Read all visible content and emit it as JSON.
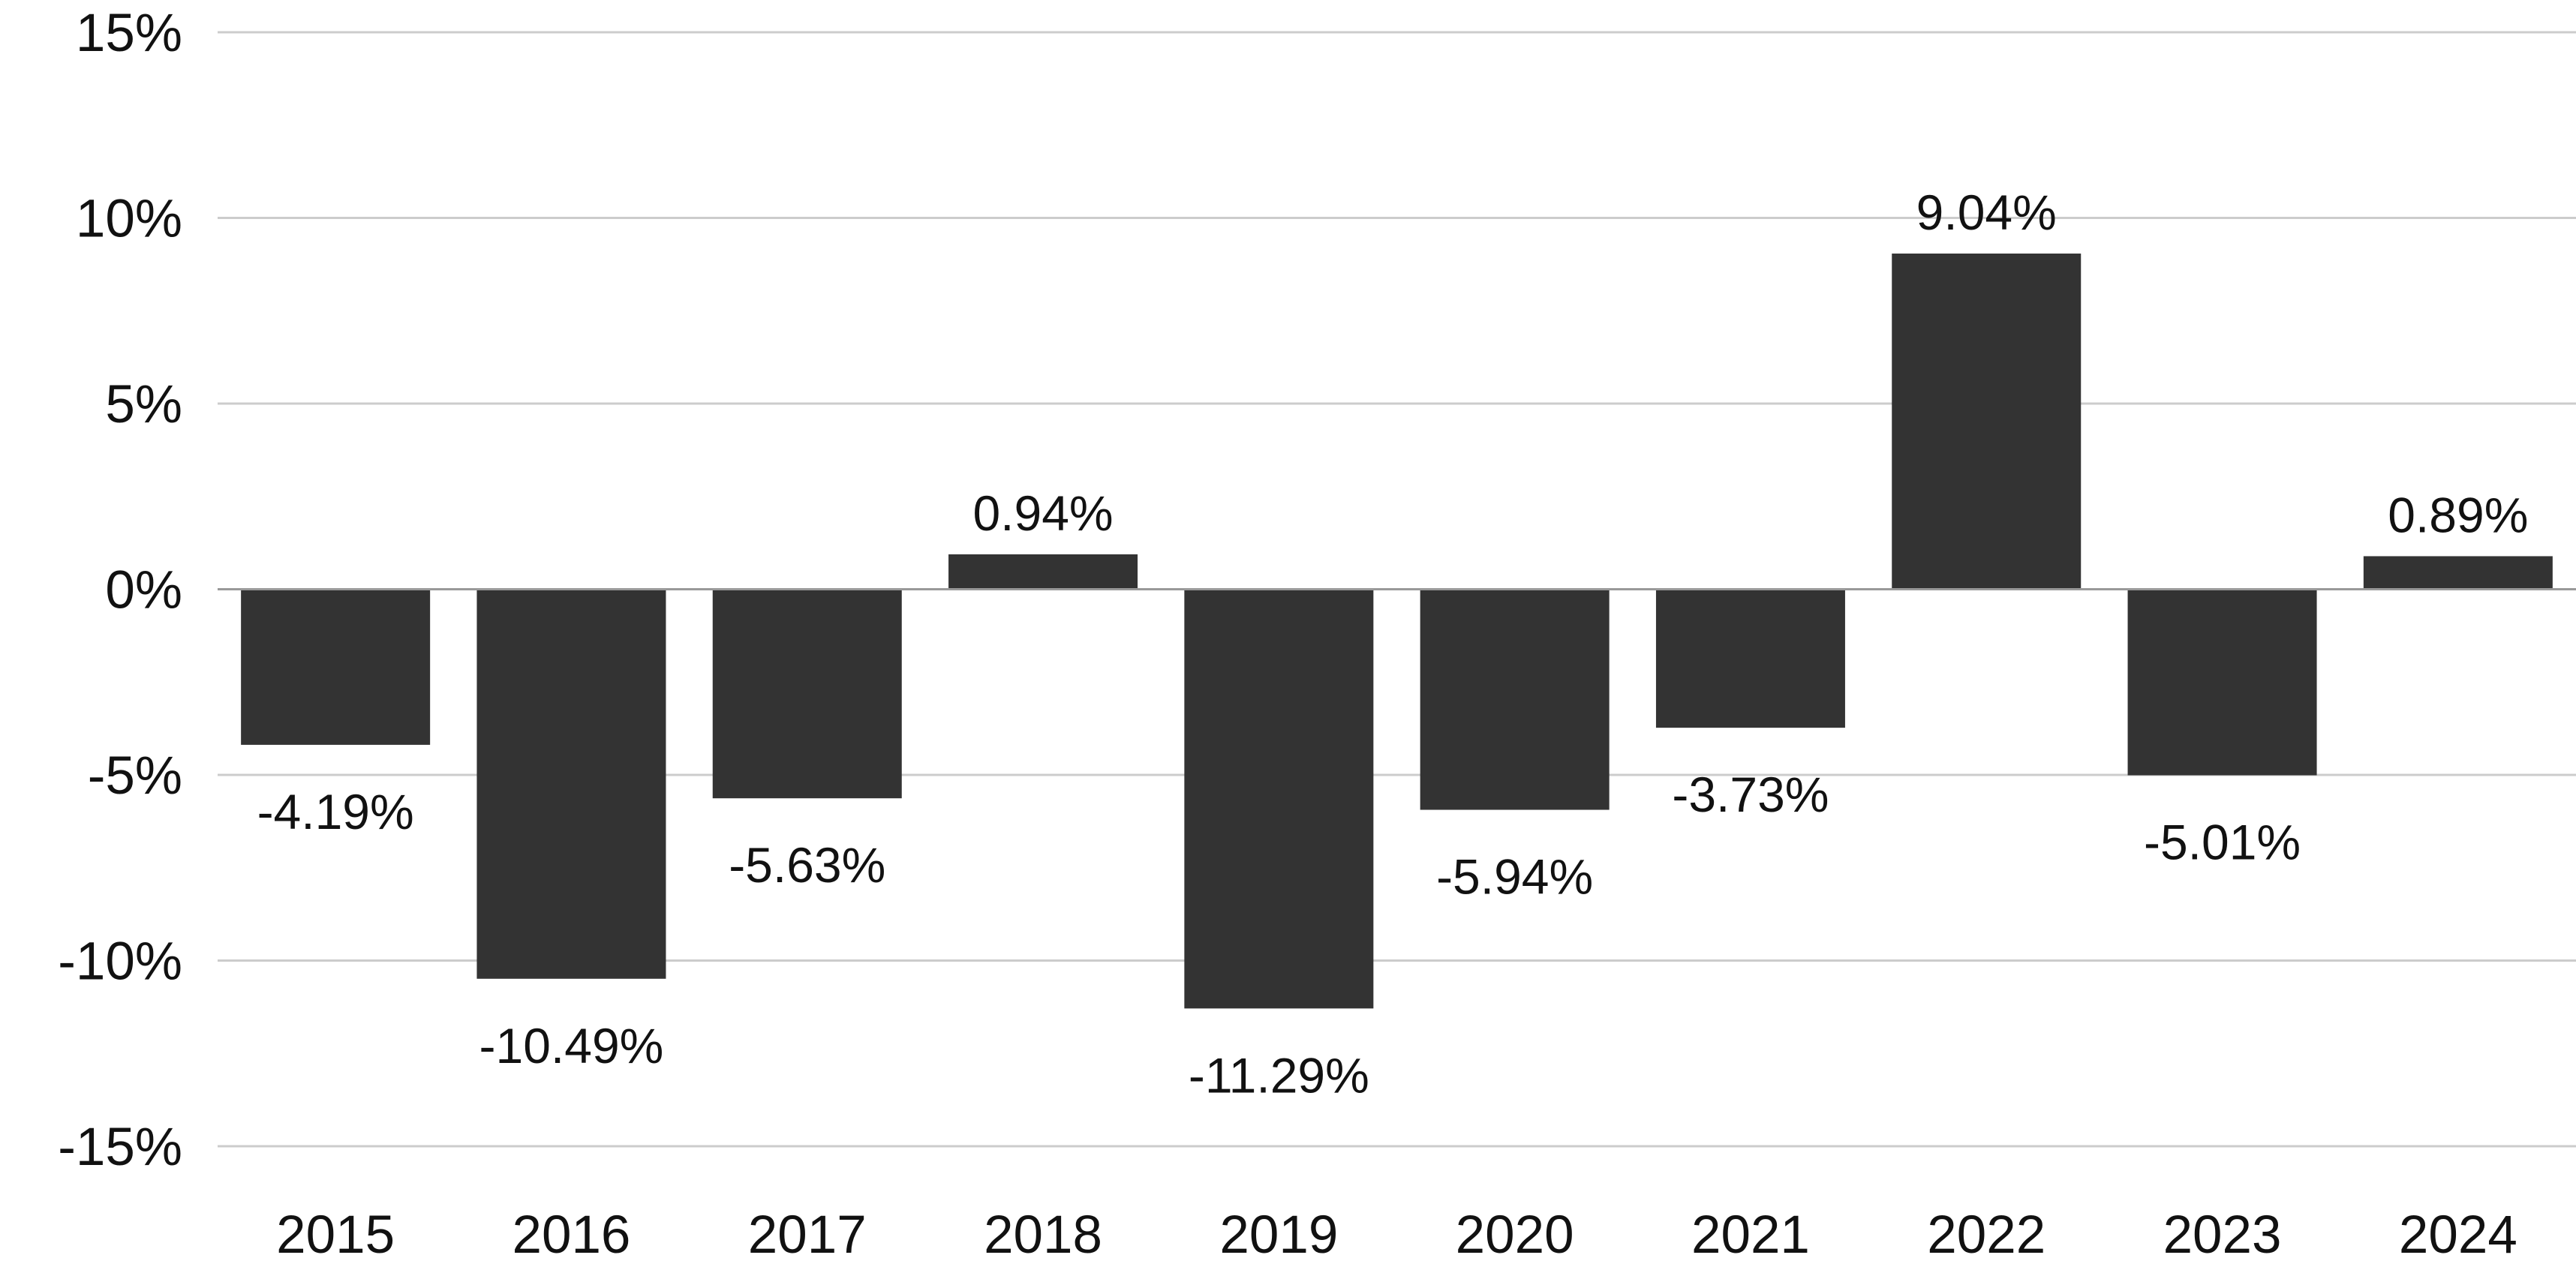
{
  "chart_data": {
    "type": "bar",
    "title": "",
    "xlabel": "",
    "ylabel": "",
    "categories": [
      "2015",
      "2016",
      "2017",
      "2018",
      "2019",
      "2020",
      "2021",
      "2022",
      "2023",
      "2024"
    ],
    "values": [
      -4.19,
      -10.49,
      -5.63,
      0.94,
      -11.29,
      -5.94,
      -3.73,
      9.04,
      -5.01,
      0.89
    ],
    "data_labels": [
      "-4.19%",
      "-10.49%",
      "-5.63%",
      "0.94%",
      "-11.29%",
      "-5.94%",
      "-3.73%",
      "9.04%",
      "-5.01%",
      "0.89%"
    ],
    "ylim": [
      -15,
      15
    ],
    "y_ticks": [
      15,
      10,
      5,
      0,
      -5,
      -10,
      -15
    ],
    "y_tick_labels": [
      "15%",
      "10%",
      "5%",
      "0%",
      "-5%",
      "-10%",
      "-15%"
    ],
    "grid": true,
    "legend": "none",
    "colors": {
      "bar": "#333333",
      "grid": "#cccccc",
      "zero_line": "#999999",
      "text": "#111111"
    }
  }
}
